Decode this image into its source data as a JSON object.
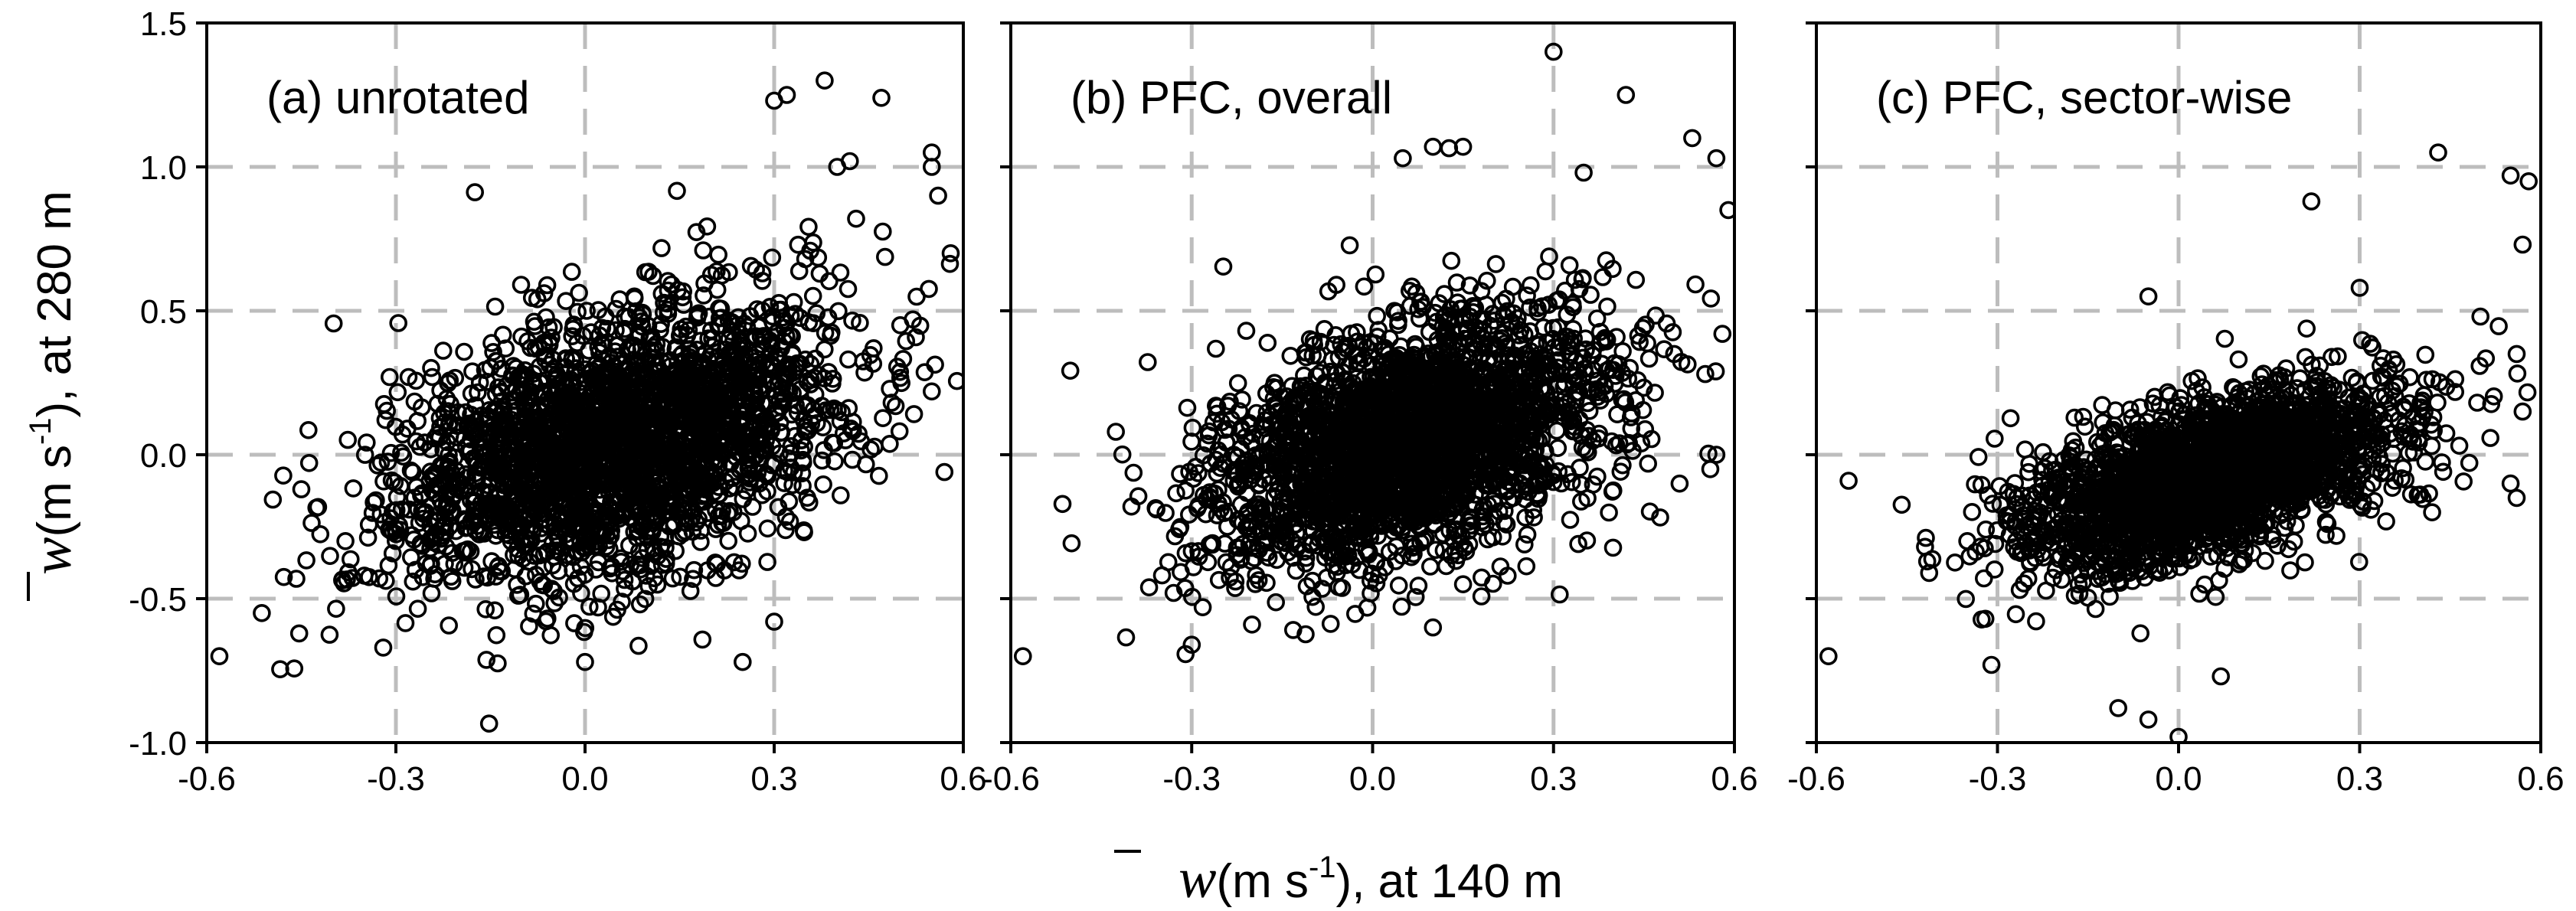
{
  "chart_data": [
    {
      "type": "scatter",
      "title": "(a) unrotated",
      "xlim": [
        -0.6,
        0.6
      ],
      "ylim": [
        -1.0,
        1.5
      ],
      "grid": true,
      "center": [
        0.05,
        0.04
      ],
      "spread": [
        0.17,
        0.23
      ],
      "corr": 0.4,
      "n_points": 2600,
      "outliers": [
        [
          -0.58,
          -0.7
        ],
        [
          0.3,
          1.23
        ],
        [
          0.32,
          1.25
        ],
        [
          0.38,
          1.3
        ],
        [
          0.47,
          1.24
        ],
        [
          0.55,
          1.05
        ],
        [
          0.55,
          1.0
        ],
        [
          0.56,
          0.9
        ],
        [
          0.58,
          0.7
        ],
        [
          -0.45,
          -0.12
        ],
        [
          -0.38,
          -0.3
        ],
        [
          -0.35,
          -0.42
        ],
        [
          -0.32,
          -0.67
        ],
        [
          -0.31,
          0.27
        ],
        [
          -0.28,
          0.27
        ],
        [
          0.0,
          -0.72
        ],
        [
          0.25,
          -0.72
        ],
        [
          0.3,
          -0.58
        ],
        [
          0.57,
          -0.06
        ],
        [
          0.5,
          0.45
        ],
        [
          0.52,
          0.47
        ],
        [
          0.55,
          0.22
        ],
        [
          0.43,
          0.82
        ],
        [
          0.4,
          1.0
        ],
        [
          0.42,
          1.02
        ]
      ],
      "x_ticks": [
        "-0.6",
        "-0.3",
        "0.0",
        "0.3",
        "0.6"
      ],
      "y_ticks": [
        "-1.0",
        "-0.5",
        "0.0",
        "0.5",
        "1.0",
        "1.5"
      ]
    },
    {
      "type": "scatter",
      "title": "(b) PFC, overall",
      "xlim": [
        -0.6,
        0.6
      ],
      "ylim": [
        -1.0,
        1.5
      ],
      "grid": true,
      "center": [
        0.06,
        0.05
      ],
      "spread": [
        0.16,
        0.22
      ],
      "corr": 0.45,
      "n_points": 2600,
      "outliers": [
        [
          -0.58,
          -0.7
        ],
        [
          0.3,
          1.4
        ],
        [
          0.15,
          1.07
        ],
        [
          0.1,
          1.07
        ],
        [
          0.05,
          1.03
        ],
        [
          0.35,
          0.98
        ],
        [
          0.42,
          1.25
        ],
        [
          0.53,
          1.1
        ],
        [
          0.57,
          1.03
        ],
        [
          0.59,
          0.85
        ],
        [
          -0.4,
          -0.18
        ],
        [
          -0.33,
          -0.48
        ],
        [
          -0.3,
          -0.66
        ],
        [
          -0.26,
          0.17
        ],
        [
          -0.24,
          0.17
        ],
        [
          0.15,
          -0.45
        ],
        [
          0.1,
          -0.6
        ],
        [
          0.57,
          0.0
        ],
        [
          0.56,
          -0.05
        ],
        [
          0.5,
          0.35
        ],
        [
          0.58,
          0.42
        ]
      ],
      "x_ticks": [
        "-0.6",
        "-0.3",
        "0.0",
        "0.3",
        "0.6"
      ],
      "y_ticks": [
        "-1.0",
        "-0.5",
        "0.0",
        "0.5",
        "1.0",
        "1.5"
      ]
    },
    {
      "type": "scatter",
      "title": "(c) PFC, sector-wise",
      "xlim": [
        -0.6,
        0.6
      ],
      "ylim": [
        -1.0,
        1.5
      ],
      "grid": true,
      "center": [
        0.05,
        -0.08
      ],
      "spread": [
        0.15,
        0.15
      ],
      "corr": 0.55,
      "n_points": 2600,
      "outliers": [
        [
          -0.58,
          -0.7
        ],
        [
          0.43,
          1.05
        ],
        [
          0.55,
          0.97
        ],
        [
          0.58,
          0.95
        ],
        [
          0.57,
          0.73
        ],
        [
          0.5,
          0.48
        ],
        [
          0.56,
          0.35
        ],
        [
          0.57,
          0.15
        ],
        [
          -0.42,
          -0.32
        ],
        [
          -0.35,
          -0.3
        ],
        [
          -0.32,
          -0.57
        ],
        [
          -0.31,
          -0.73
        ],
        [
          -0.1,
          -0.88
        ],
        [
          -0.05,
          -0.92
        ],
        [
          0.0,
          -0.98
        ],
        [
          0.07,
          -0.77
        ],
        [
          0.22,
          0.88
        ],
        [
          0.3,
          0.58
        ],
        [
          0.55,
          -0.1
        ],
        [
          0.56,
          -0.15
        ],
        [
          0.42,
          -0.2
        ],
        [
          -0.05,
          0.55
        ]
      ],
      "x_ticks": [
        "-0.6",
        "-0.3",
        "0.0",
        "0.3",
        "0.6"
      ],
      "y_ticks": [
        "-1.0",
        "-0.5",
        "0.0",
        "0.5",
        "1.0",
        "1.5"
      ]
    }
  ],
  "y_axis_label": {
    "symbol": "w",
    "text": "(m s",
    "exp": "-1",
    "suffix": "), at 280 m"
  },
  "x_axis_label": {
    "symbol": "w",
    "text": "(m s",
    "exp": "-1",
    "suffix": "), at 140 m"
  },
  "colors": {
    "marker": "#000000",
    "grid": "#bdbdbd",
    "axis": "#000000"
  }
}
